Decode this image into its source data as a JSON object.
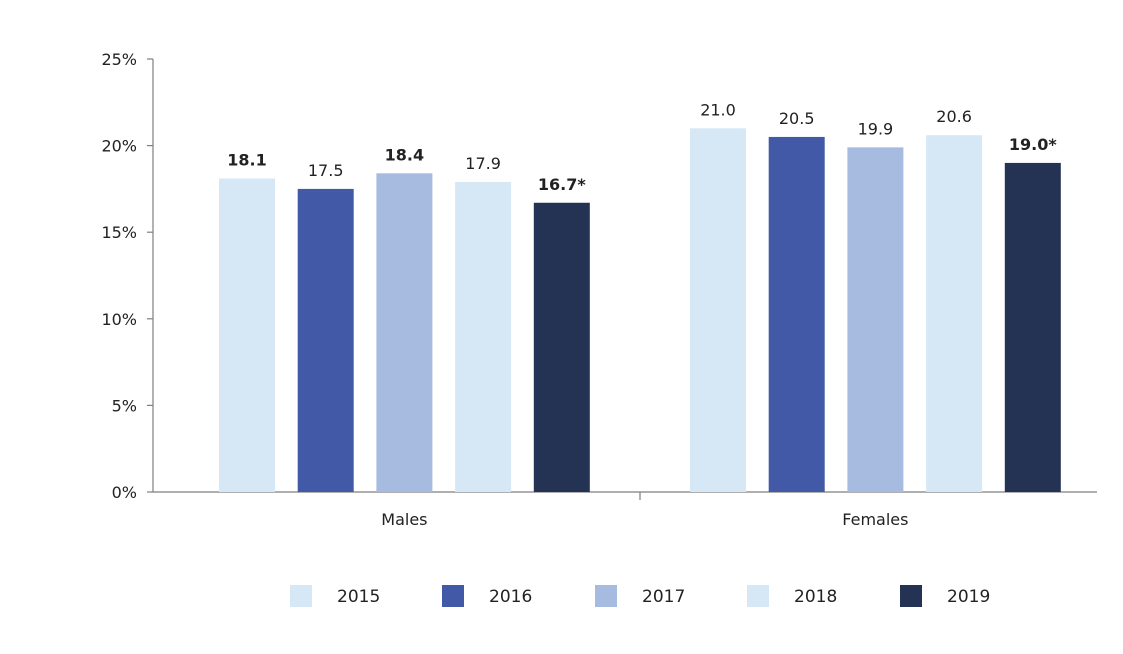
{
  "chart_data": {
    "type": "bar",
    "categories": [
      "Males",
      "Females"
    ],
    "series": [
      {
        "name": "2015",
        "color": "#d6e8f6",
        "values": [
          18.1,
          21.0
        ],
        "labels": [
          "18.1",
          "21.0"
        ],
        "bold": [
          true,
          false
        ]
      },
      {
        "name": "2016",
        "color": "#4159a6",
        "values": [
          17.5,
          20.5
        ],
        "labels": [
          "17.5",
          "20.5"
        ],
        "bold": [
          false,
          false
        ]
      },
      {
        "name": "2017",
        "color": "#a7bbe0",
        "values": [
          18.4,
          19.9
        ],
        "labels": [
          "18.4",
          "19.9"
        ],
        "bold": [
          true,
          false
        ]
      },
      {
        "name": "2018",
        "color": "#d6e8f6",
        "values": [
          17.9,
          20.6
        ],
        "labels": [
          "17.9",
          "20.6"
        ],
        "bold": [
          false,
          false
        ]
      },
      {
        "name": "2019",
        "color": "#243354",
        "values": [
          16.7,
          19.0
        ],
        "labels": [
          "16.7*",
          "19.0*"
        ],
        "bold": [
          true,
          true
        ]
      }
    ],
    "ylim": [
      0,
      25
    ],
    "yticks": [
      0,
      5,
      10,
      15,
      20,
      25
    ],
    "ytick_labels": [
      "0%",
      "5%",
      "10%",
      "15%",
      "20%",
      "25%"
    ],
    "grid": false,
    "legend_position": "bottom"
  }
}
